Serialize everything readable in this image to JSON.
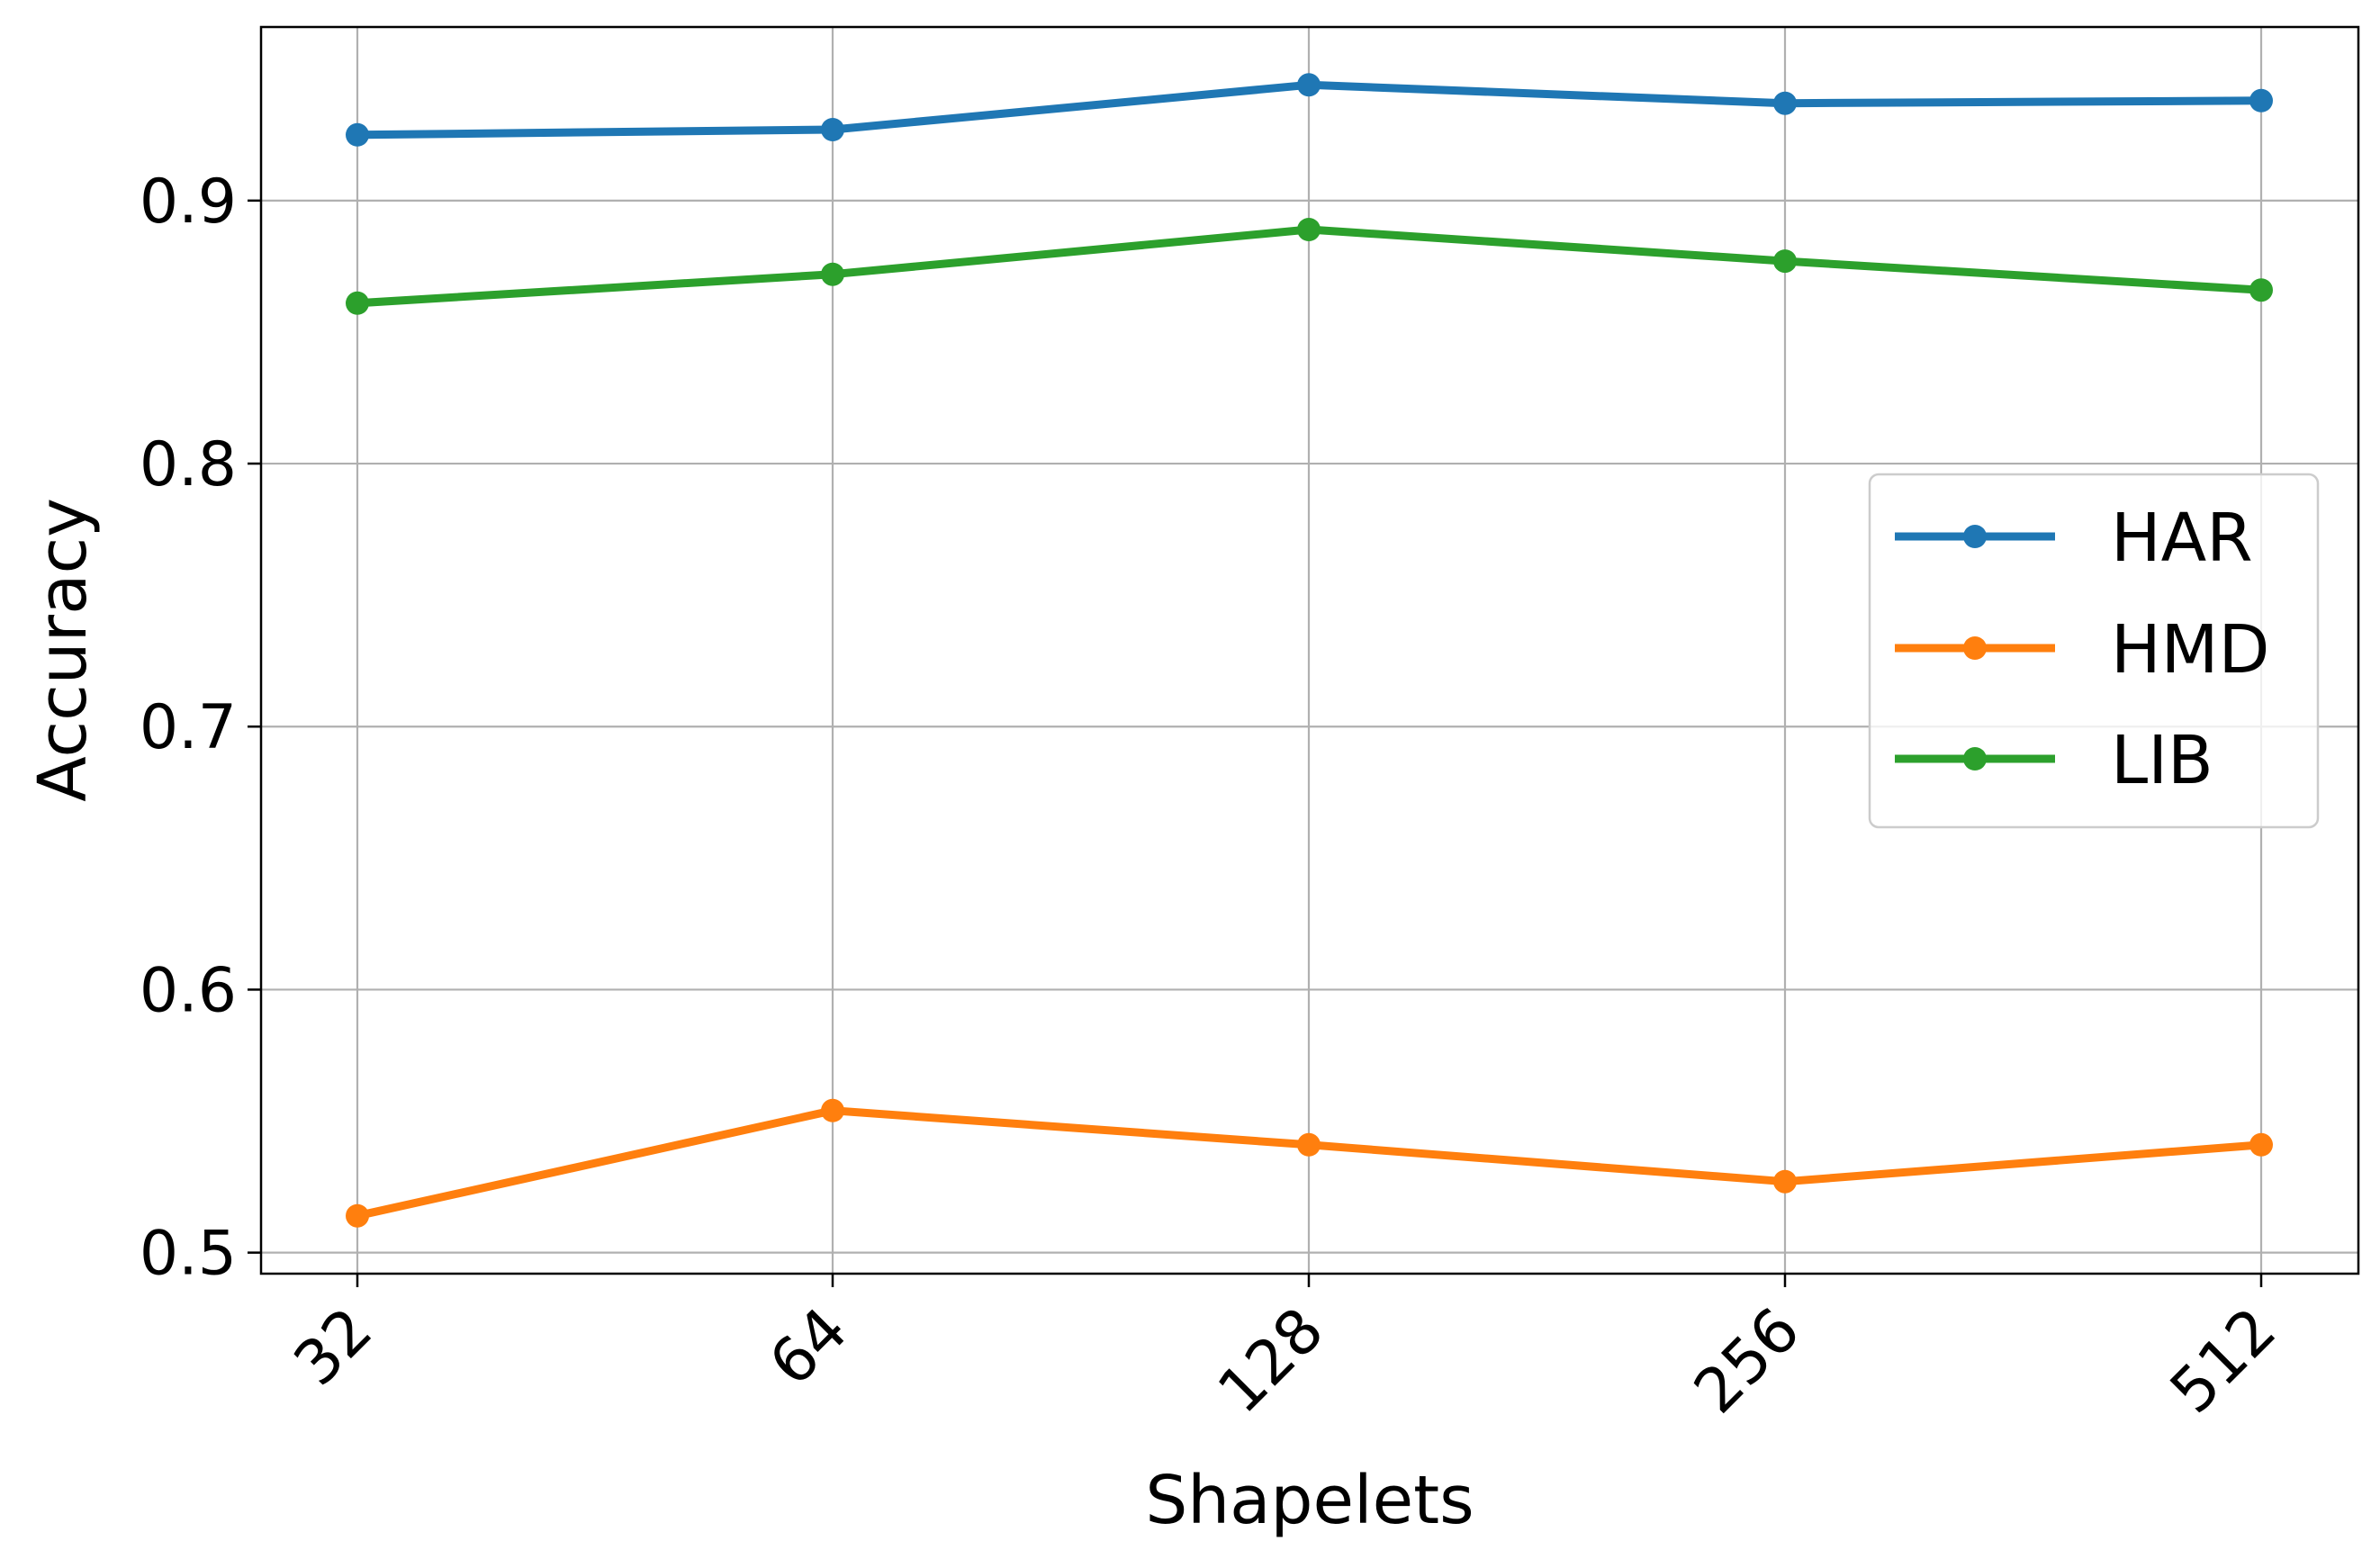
{
  "chart_data": {
    "type": "line",
    "title": "",
    "xlabel": "Shapelets",
    "ylabel": "Accuracy",
    "x": [
      "32",
      "64",
      "128",
      "256",
      "512"
    ],
    "yticks": [
      "0.5",
      "0.6",
      "0.7",
      "0.8",
      "0.9"
    ],
    "ylim": [
      0.492,
      0.966
    ],
    "grid": true,
    "legend_position": "center-right",
    "series": [
      {
        "name": "HAR",
        "color": "#1f77b4",
        "values": [
          0.925,
          0.927,
          0.944,
          0.937,
          0.938
        ]
      },
      {
        "name": "HMD",
        "color": "#ff7f0e",
        "values": [
          0.514,
          0.554,
          0.541,
          0.527,
          0.541
        ]
      },
      {
        "name": "LIB",
        "color": "#2ca02c",
        "values": [
          0.861,
          0.872,
          0.889,
          0.877,
          0.866
        ]
      }
    ]
  }
}
